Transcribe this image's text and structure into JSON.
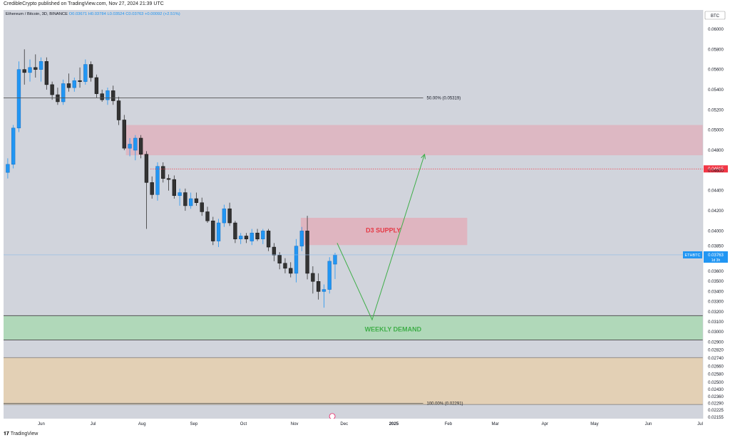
{
  "header": {
    "published_by": "CredibleCrypto published on TradingView.com, Nov 27, 2024 21:39 UTC"
  },
  "footer": {
    "brand_glyph": "𝟏𝟕",
    "brand": "TradingView"
  },
  "colors": {
    "chart_bg": "#d1d4dc",
    "bull": "#2196f3",
    "bear": "#333333",
    "supply_zone": "#e8a0ae",
    "demand_zone": "#a8d8b0",
    "lower_zone": "#e8cfa8",
    "arrow": "#3fae49",
    "price_tag": "#2196f3",
    "red_line": "#f23645"
  },
  "chart_data": {
    "type": "candlestick",
    "symbol_line": "Ethereum / Bitcoin, 3D, BINANCE",
    "ohlc_line": {
      "o": "O0.03671",
      "h": "H0.03784",
      "l": "L0.03524",
      "c": "C0.03763",
      "chg": "+0.00092 (+2.51%)"
    },
    "currency": "BTC",
    "ylim": [
      0.0214,
      0.0619
    ],
    "y_ticks": [
      "0.06000",
      "0.05800",
      "0.05600",
      "0.05400",
      "0.05200",
      "0.05000",
      "0.04800",
      "0.04615",
      "0.04600",
      "0.04400",
      "0.04200",
      "0.04000",
      "0.03850",
      "0.03763",
      "0.03600",
      "0.03500",
      "0.03400",
      "0.03300",
      "0.03200",
      "0.03100",
      "0.03000",
      "0.02900",
      "0.02820",
      "0.02740",
      "0.02660",
      "0.02580",
      "0.02500",
      "0.02430",
      "0.02360",
      "0.02290",
      "0.02225",
      "0.02155"
    ],
    "x_ticks": [
      {
        "label": "Jun",
        "x": 0.054
      },
      {
        "label": "Jul",
        "x": 0.128
      },
      {
        "label": "Aug",
        "x": 0.198
      },
      {
        "label": "Sep",
        "x": 0.272
      },
      {
        "label": "Oct",
        "x": 0.343
      },
      {
        "label": "Nov",
        "x": 0.416
      },
      {
        "label": "Dec",
        "x": 0.487
      },
      {
        "label": "2025",
        "x": 0.558
      },
      {
        "label": "Feb",
        "x": 0.636
      },
      {
        "label": "Mar",
        "x": 0.703
      },
      {
        "label": "Apr",
        "x": 0.774
      },
      {
        "label": "May",
        "x": 0.845
      },
      {
        "label": "Jun",
        "x": 0.922
      },
      {
        "label": "Jul",
        "x": 0.996
      }
    ],
    "candles": [
      [
        0.0458,
        0.0472,
        0.0452,
        0.0466
      ],
      [
        0.0466,
        0.0505,
        0.0462,
        0.0502
      ],
      [
        0.0502,
        0.0568,
        0.0498,
        0.056
      ],
      [
        0.056,
        0.058,
        0.0545,
        0.0557
      ],
      [
        0.0557,
        0.057,
        0.0548,
        0.0562
      ],
      [
        0.0562,
        0.0575,
        0.0552,
        0.056
      ],
      [
        0.056,
        0.0572,
        0.0548,
        0.0568
      ],
      [
        0.0568,
        0.0572,
        0.054,
        0.0545
      ],
      [
        0.0545,
        0.0548,
        0.053,
        0.0535
      ],
      [
        0.0535,
        0.0542,
        0.0525,
        0.0528
      ],
      [
        0.0528,
        0.055,
        0.0525,
        0.0546
      ],
      [
        0.0546,
        0.0556,
        0.0538,
        0.0542
      ],
      [
        0.0542,
        0.0552,
        0.0538,
        0.0549
      ],
      [
        0.0549,
        0.0562,
        0.0542,
        0.0548
      ],
      [
        0.0548,
        0.057,
        0.0545,
        0.0565
      ],
      [
        0.0565,
        0.0568,
        0.0548,
        0.0552
      ],
      [
        0.0552,
        0.0555,
        0.0532,
        0.0536
      ],
      [
        0.0536,
        0.054,
        0.0528,
        0.053
      ],
      [
        0.053,
        0.0542,
        0.0525,
        0.0539
      ],
      [
        0.0539,
        0.0544,
        0.0525,
        0.0529
      ],
      [
        0.0529,
        0.0533,
        0.0505,
        0.051
      ],
      [
        0.051,
        0.0515,
        0.048,
        0.0482
      ],
      [
        0.0482,
        0.0492,
        0.0474,
        0.0486
      ],
      [
        0.048,
        0.0495,
        0.047,
        0.0492
      ],
      [
        0.0492,
        0.0495,
        0.0472,
        0.0476
      ],
      [
        0.0476,
        0.0479,
        0.0402,
        0.0448
      ],
      [
        0.0448,
        0.0454,
        0.0432,
        0.0436
      ],
      [
        0.0436,
        0.0468,
        0.043,
        0.0464
      ],
      [
        0.0464,
        0.0468,
        0.0448,
        0.0452
      ],
      [
        0.0452,
        0.0456,
        0.044,
        0.0451
      ],
      [
        0.0451,
        0.0455,
        0.0432,
        0.0435
      ],
      [
        0.0435,
        0.0442,
        0.0425,
        0.0438
      ],
      [
        0.0438,
        0.0442,
        0.042,
        0.0425
      ],
      [
        0.0425,
        0.0438,
        0.0422,
        0.0432
      ],
      [
        0.0432,
        0.0438,
        0.0425,
        0.0428
      ],
      [
        0.0428,
        0.0433,
        0.0415,
        0.0419
      ],
      [
        0.0419,
        0.0424,
        0.0408,
        0.041
      ],
      [
        0.041,
        0.0414,
        0.0386,
        0.039
      ],
      [
        0.039,
        0.0412,
        0.0384,
        0.0408
      ],
      [
        0.0408,
        0.0426,
        0.0404,
        0.0422
      ],
      [
        0.0422,
        0.0428,
        0.0405,
        0.0408
      ],
      [
        0.0408,
        0.041,
        0.0388,
        0.0392
      ],
      [
        0.0392,
        0.0398,
        0.0387,
        0.0395
      ],
      [
        0.0395,
        0.0398,
        0.0388,
        0.0392
      ],
      [
        0.039,
        0.0402,
        0.0386,
        0.0398
      ],
      [
        0.0398,
        0.0402,
        0.039,
        0.0392
      ],
      [
        0.0392,
        0.0402,
        0.0387,
        0.04
      ],
      [
        0.04,
        0.0402,
        0.038,
        0.0384
      ],
      [
        0.0384,
        0.0388,
        0.037,
        0.0376
      ],
      [
        0.0376,
        0.0379,
        0.0362,
        0.0368
      ],
      [
        0.0368,
        0.0373,
        0.0358,
        0.0363
      ],
      [
        0.0363,
        0.0369,
        0.0354,
        0.0358
      ],
      [
        0.0358,
        0.0392,
        0.0349,
        0.0385
      ],
      [
        0.0385,
        0.0404,
        0.038,
        0.04
      ],
      [
        0.04,
        0.0415,
        0.0352,
        0.0358
      ],
      [
        0.0358,
        0.0365,
        0.0338,
        0.035
      ],
      [
        0.035,
        0.0358,
        0.0332,
        0.034
      ],
      [
        0.034,
        0.0347,
        0.0324,
        0.0342
      ],
      [
        0.0342,
        0.0374,
        0.0338,
        0.037
      ],
      [
        0.03671,
        0.03784,
        0.03524,
        0.03763
      ]
    ],
    "fib_50": {
      "value": 0.05319,
      "label": "50.00% (0.05319)"
    },
    "fib_100": {
      "value": 0.02291,
      "label": "100.00% (0.02291)"
    },
    "supply_zone_top": {
      "y1": 0.0505,
      "y2": 0.0475
    },
    "d3_supply": {
      "y1": 0.0413,
      "y2": 0.0386,
      "label": "D3 SUPPLY"
    },
    "weekly_demand": {
      "y1": 0.0316,
      "y2": 0.0292,
      "label": "WEEKLY DEMAND"
    },
    "lower_zone": {
      "y1": 0.02745,
      "y2": 0.0228
    },
    "red_line": {
      "value": 0.04615,
      "label": "0.04615"
    },
    "current_price": {
      "value": 0.03763,
      "symbol": "ETHBTC",
      "price": "0.03763",
      "countdown": "1d 3h"
    },
    "projection": [
      {
        "x": 0.477,
        "y": 0.0388
      },
      {
        "x": 0.527,
        "y": 0.0312
      },
      {
        "x": 0.602,
        "y": 0.0476
      }
    ],
    "xlim_note": "candle spacing computed in script"
  }
}
